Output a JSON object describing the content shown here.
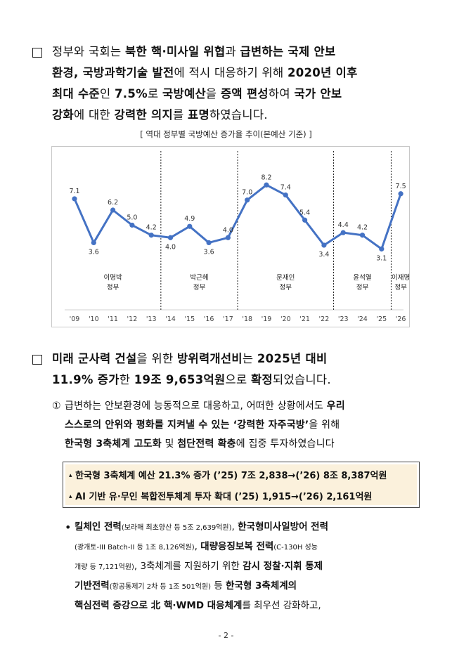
{
  "section1": {
    "lines": [
      [
        {
          "t": "정부와 국회는 ",
          "b": false
        },
        {
          "t": "북한 핵·미사일 위협",
          "b": true
        },
        {
          "t": "과 ",
          "b": false
        },
        {
          "t": "급변하는 국제 안보",
          "b": true
        }
      ],
      [
        {
          "t": "환경, 국방과학기술 발전",
          "b": true
        },
        {
          "t": "에 적시 대응하기 위해 ",
          "b": false
        },
        {
          "t": "2020년 이후",
          "b": true
        }
      ],
      [
        {
          "t": "최대 수준",
          "b": true
        },
        {
          "t": "인 ",
          "b": false
        },
        {
          "t": "7.5%",
          "b": true
        },
        {
          "t": "로 ",
          "b": false
        },
        {
          "t": "국방예산",
          "b": true
        },
        {
          "t": "을 ",
          "b": false
        },
        {
          "t": "증액 편성",
          "b": true
        },
        {
          "t": "하여 ",
          "b": false
        },
        {
          "t": "국가 안보",
          "b": true
        }
      ],
      [
        {
          "t": "강화",
          "b": true
        },
        {
          "t": "에 대한 ",
          "b": false
        },
        {
          "t": "강력한 의지",
          "b": true
        },
        {
          "t": "를 ",
          "b": false
        },
        {
          "t": "표명",
          "b": true
        },
        {
          "t": "하였습니다.",
          "b": false
        }
      ]
    ]
  },
  "caption": "[ 역대 정부별 국방예산 증가율 추이(본예산 기준) ]",
  "chart_data": {
    "type": "line",
    "title": "역대 정부별 국방예산 증가율 추이(본예산 기준)",
    "categories": [
      "'09",
      "'10",
      "'11",
      "'12",
      "'13",
      "'14",
      "'15",
      "'16",
      "'17",
      "'18",
      "'19",
      "'20",
      "'21",
      "'22",
      "'23",
      "'24",
      "'25",
      "'26"
    ],
    "values": [
      7.1,
      3.6,
      6.2,
      5.0,
      4.2,
      4.0,
      4.9,
      3.6,
      4.0,
      7.0,
      8.2,
      7.4,
      5.4,
      3.4,
      4.4,
      4.2,
      3.1,
      7.5
    ],
    "labels": [
      "7.1",
      "3.6",
      "6.2",
      "5.0",
      "4.2",
      "4.0",
      "4.9",
      "3.6",
      "4.0",
      "7.0",
      "8.2",
      "7.4",
      "5.4",
      "3.4",
      "4.4",
      "4.2",
      "3.1",
      "7.5"
    ],
    "ylim": [
      2,
      9
    ],
    "line_color": "#4472c4",
    "governments": [
      {
        "name": "이명박",
        "suffix": "정부",
        "start": 0,
        "end": 4
      },
      {
        "name": "박근혜",
        "suffix": "정부",
        "start": 5,
        "end": 8
      },
      {
        "name": "문재인",
        "suffix": "정부",
        "start": 9,
        "end": 13
      },
      {
        "name": "윤석열",
        "suffix": "정부",
        "start": 14,
        "end": 16
      },
      {
        "name": "이재명",
        "suffix": "정부",
        "start": 17,
        "end": 17
      }
    ]
  },
  "section2": {
    "lines": [
      [
        {
          "t": "미래 군사력 건설",
          "b": true
        },
        {
          "t": "을 위한 ",
          "b": false
        },
        {
          "t": "방위력개선비",
          "b": true
        },
        {
          "t": "는 ",
          "b": false
        },
        {
          "t": "2025년 대비",
          "b": true
        }
      ],
      [
        {
          "t": "11.9% 증가",
          "b": true
        },
        {
          "t": "한 ",
          "b": false
        },
        {
          "t": "19조 9,653억원",
          "b": true
        },
        {
          "t": "으로 ",
          "b": false
        },
        {
          "t": "확정",
          "b": true
        },
        {
          "t": "되었습니다.",
          "b": false
        }
      ]
    ]
  },
  "sub1": {
    "marker": "①",
    "lines": [
      [
        {
          "t": "급변하는 안보환경에 능동적으로 대응하고, 어떠한 상황에서도 ",
          "b": false
        },
        {
          "t": "우리",
          "b": true
        }
      ],
      [
        {
          "t": "스스로의 안위와 평화를 지켜낼 수 있는 ",
          "b": true
        },
        {
          "t": "‘강력한 자주국방’",
          "b": true
        },
        {
          "t": "을 위해",
          "b": false
        }
      ],
      [
        {
          "t": "한국형 3축체계 고도화",
          "b": true
        },
        {
          "t": " 및 ",
          "b": false
        },
        {
          "t": "첨단전력 확충",
          "b": true
        },
        {
          "t": "에 집중 투자하였습니다",
          "b": false
        }
      ]
    ]
  },
  "highlight": {
    "marker": "▴",
    "items": [
      "한국형 3축체계 예산 21.3% 증가 (’25) 7조 2,838→(’26) 8조 8,387억원",
      "AI 기반 유·무인 복합전투체계 투자 확대 (’25) 1,915→(’26) 2,161억원"
    ]
  },
  "bullet": {
    "marker": "•",
    "lines": [
      [
        {
          "t": "킬체인 전력",
          "b": true
        },
        {
          "t": "(보라매 최초양산 등 5조 2,639억원)",
          "b": false,
          "s": true
        },
        {
          "t": ", ",
          "b": false
        },
        {
          "t": "한국형미사일방어 전력",
          "b": true
        }
      ],
      [
        {
          "t": "(광개토-III Batch-II 등 1조 8,126억원)",
          "b": false,
          "s": true
        },
        {
          "t": ", ",
          "b": false
        },
        {
          "t": "대량응징보복 전력",
          "b": true
        },
        {
          "t": "(C-130H 성능",
          "b": false,
          "s": true
        }
      ],
      [
        {
          "t": "개량 등 7,121억원)",
          "b": false,
          "s": true
        },
        {
          "t": ", 3축체계를 지원하기 위한 ",
          "b": false
        },
        {
          "t": "감시 정찰·지휘 통제",
          "b": true
        }
      ],
      [
        {
          "t": "기반전력",
          "b": true
        },
        {
          "t": "(항공통제기 2차 등 1조 501억원)",
          "b": false,
          "s": true
        },
        {
          "t": " 등 ",
          "b": false
        },
        {
          "t": "한국형 3축체계의",
          "b": true
        }
      ],
      [
        {
          "t": "핵심전력 증강으로 ",
          "b": true
        },
        {
          "t": "北 핵·WMD 대응체계",
          "b": true
        },
        {
          "t": "를 최우선 강화하고,",
          "b": false
        }
      ]
    ]
  },
  "page_number": "- 2 -"
}
